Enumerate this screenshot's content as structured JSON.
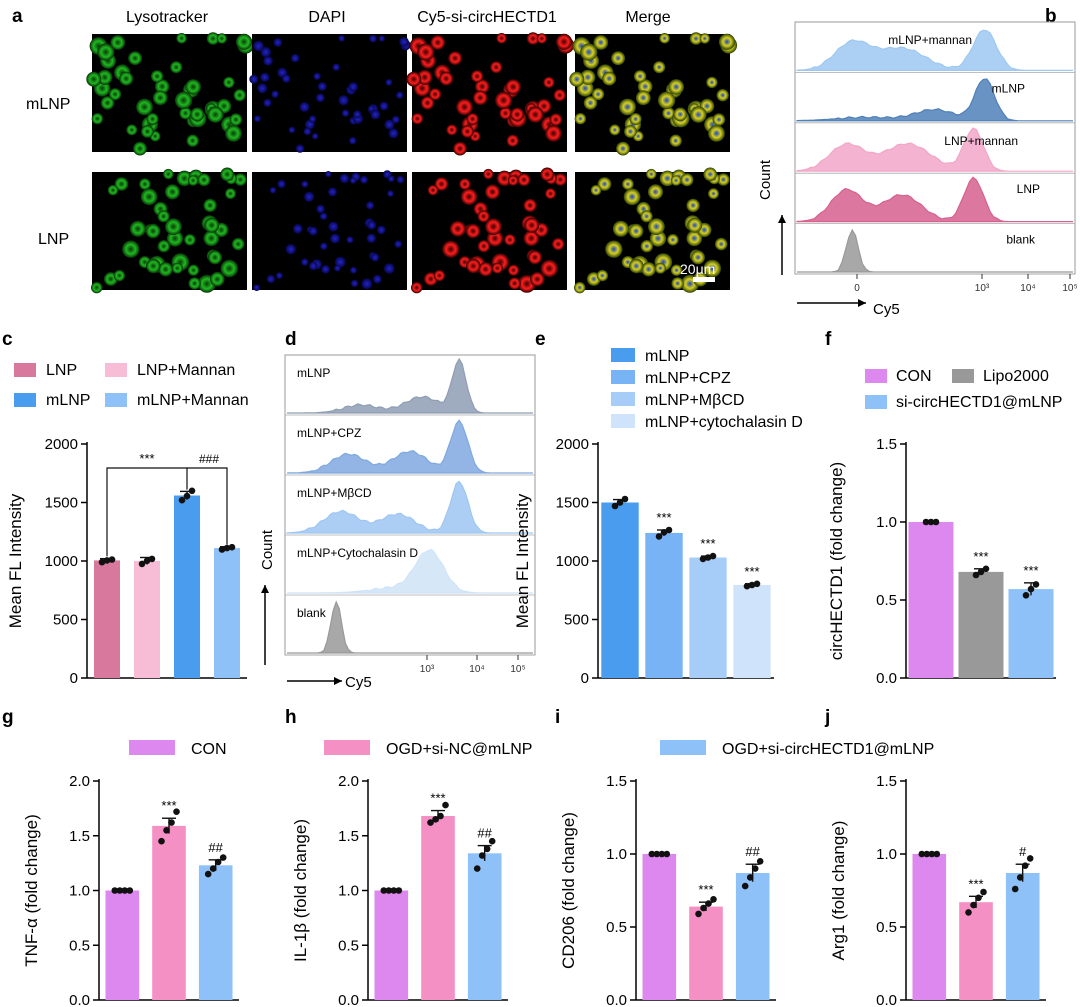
{
  "panel_labels": [
    "a",
    "b",
    "c",
    "d",
    "e",
    "f",
    "g",
    "h",
    "i",
    "j"
  ],
  "microscopy": {
    "col_labels": [
      "Lysotracker",
      "DAPI",
      "Cy5-si-circHECTD1",
      "Merge"
    ],
    "row_labels": [
      "mLNP",
      "LNP"
    ],
    "scale_bar": "20μm"
  },
  "colors": {
    "LNP": "#d8789c",
    "LNP_Mannan": "#f7bcd6",
    "mLNP": "#4a9cef",
    "mLNP_Mannan": "#8ec1f7",
    "e1": "#4a9cef",
    "e2": "#78b4f5",
    "e3": "#a6cdf8",
    "e4": "#cfe3fa",
    "CON": "#dd88ee",
    "Lipo2000": "#999999",
    "si": "#8ec1f7",
    "OGD_NC": "#f590c4"
  },
  "chart_data": [
    {
      "panel": "b",
      "type": "histogram",
      "xlabel": "Cy5",
      "ylabel": "Count",
      "x_tick_labels": [
        "0",
        "10³",
        "10⁴",
        "10⁵"
      ],
      "series": [
        {
          "name": "mLNP+mannan",
          "color": "#9ec8f2"
        },
        {
          "name": "mLNP",
          "color": "#4f80b8"
        },
        {
          "name": "LNP+mannan",
          "color": "#f2a6c8"
        },
        {
          "name": "LNP",
          "color": "#d6608e"
        },
        {
          "name": "blank",
          "color": "#999999"
        }
      ]
    },
    {
      "panel": "c",
      "type": "bar",
      "ylabel": "Mean FL Intensity",
      "ylim": [
        0,
        2000
      ],
      "y_ticks": [
        "0",
        "500",
        "1000",
        "1500",
        "2000"
      ],
      "legend": [
        "LNP",
        "LNP+Mannan",
        "mLNP",
        "mLNP+Mannan"
      ],
      "categories": [
        "LNP",
        "LNP+Mannan",
        "mLNP",
        "mLNP+Mannan"
      ],
      "values": [
        1005,
        1000,
        1560,
        1110
      ],
      "errors": [
        15,
        30,
        35,
        12
      ],
      "points": [
        [
          990,
          1005,
          1012
        ],
        [
          975,
          1002,
          1018
        ],
        [
          1520,
          1555,
          1600
        ],
        [
          1098,
          1110,
          1118
        ]
      ],
      "annotations": [
        "***",
        "###"
      ]
    },
    {
      "panel": "d",
      "type": "histogram",
      "xlabel": "Cy5",
      "ylabel": "Count",
      "x_tick_labels": [
        "10³",
        "10⁴",
        "10⁵"
      ],
      "series": [
        {
          "name": "mLNP",
          "color": "#8e9db4"
        },
        {
          "name": "mLNP+CPZ",
          "color": "#7fa8e0"
        },
        {
          "name": "mLNP+MβCD",
          "color": "#9ec6f2"
        },
        {
          "name": "mLNP+Cytochalasin D",
          "color": "#cfe3f7"
        },
        {
          "name": "blank",
          "color": "#999999"
        }
      ]
    },
    {
      "panel": "e",
      "type": "bar",
      "ylabel": "Mean FL Intensity",
      "ylim": [
        0,
        2000
      ],
      "y_ticks": [
        "0",
        "500",
        "1000",
        "1500",
        "2000"
      ],
      "legend": [
        "mLNP",
        "mLNP+CPZ",
        "mLNP+MβCD",
        "mLNP+cytochalasin D"
      ],
      "categories": [
        "mLNP",
        "mLNP+CPZ",
        "mLNP+MβCD",
        "mLNP+cytochalasin D"
      ],
      "values": [
        1500,
        1240,
        1030,
        795
      ],
      "errors": [
        25,
        25,
        12,
        10
      ],
      "points": [
        [
          1470,
          1500,
          1530
        ],
        [
          1210,
          1245,
          1265
        ],
        [
          1018,
          1030,
          1042
        ],
        [
          785,
          795,
          805
        ]
      ],
      "annotations": [
        "",
        "***",
        "***",
        "***"
      ]
    },
    {
      "panel": "f",
      "type": "bar",
      "ylabel": "circHECTD1 (fold change)",
      "ylim": [
        0,
        1.5
      ],
      "y_ticks": [
        "0.0",
        "0.5",
        "1.0",
        "1.5"
      ],
      "legend": [
        "CON",
        "Lipo2000",
        "si-circHECTD1@mLNP"
      ],
      "categories": [
        "CON",
        "Lipo2000",
        "si-circHECTD1@mLNP"
      ],
      "values": [
        1.0,
        0.68,
        0.57
      ],
      "errors": [
        0,
        0.02,
        0.04
      ],
      "points": [
        [
          1.0,
          1.0,
          1.0
        ],
        [
          0.66,
          0.68,
          0.7
        ],
        [
          0.53,
          0.57,
          0.6
        ]
      ],
      "annotations": [
        "",
        "***",
        "***"
      ]
    },
    {
      "panel": "g",
      "type": "bar",
      "ylabel": "TNF-α (fold change)",
      "ylim": [
        0,
        2.0
      ],
      "y_ticks": [
        "0.0",
        "0.5",
        "1.0",
        "1.5",
        "2.0"
      ],
      "categories": [
        "CON",
        "OGD+si-NC@mLNP",
        "OGD+si-circHECTD1@mLNP"
      ],
      "values": [
        1.0,
        1.59,
        1.23
      ],
      "errors": [
        0,
        0.07,
        0.05
      ],
      "points": [
        [
          1.0,
          1.0,
          1.0,
          1.0
        ],
        [
          1.45,
          1.55,
          1.62,
          1.72
        ],
        [
          1.15,
          1.2,
          1.26,
          1.3
        ]
      ],
      "annotations": [
        "",
        "***",
        "##"
      ]
    },
    {
      "panel": "h",
      "type": "bar",
      "ylabel": "IL-1β (fold change)",
      "ylim": [
        0,
        2.0
      ],
      "y_ticks": [
        "0.0",
        "0.5",
        "1.0",
        "1.5",
        "2.0"
      ],
      "categories": [
        "CON",
        "OGD+si-NC@mLNP",
        "OGD+si-circHECTD1@mLNP"
      ],
      "values": [
        1.0,
        1.68,
        1.34
      ],
      "errors": [
        0,
        0.05,
        0.07
      ],
      "points": [
        [
          1.0,
          1.0,
          1.0,
          1.0
        ],
        [
          1.62,
          1.65,
          1.68,
          1.78
        ],
        [
          1.2,
          1.32,
          1.38,
          1.45
        ]
      ],
      "annotations": [
        "",
        "***",
        "##"
      ]
    },
    {
      "panel": "i",
      "type": "bar",
      "ylabel": "CD206 (fold change)",
      "ylim": [
        0,
        1.5
      ],
      "y_ticks": [
        "0.0",
        "0.5",
        "1.0",
        "1.5"
      ],
      "categories": [
        "CON",
        "OGD+si-NC@mLNP",
        "OGD+si-circHECTD1@mLNP"
      ],
      "values": [
        1.0,
        0.64,
        0.87
      ],
      "errors": [
        0,
        0.03,
        0.06
      ],
      "points": [
        [
          1.0,
          1.0,
          1.0,
          1.0
        ],
        [
          0.59,
          0.63,
          0.66,
          0.69
        ],
        [
          0.78,
          0.84,
          0.9,
          0.95
        ]
      ],
      "annotations": [
        "",
        "***",
        "##"
      ]
    },
    {
      "panel": "j",
      "type": "bar",
      "ylabel": "Arg1 (fold change)",
      "ylim": [
        0,
        1.5
      ],
      "y_ticks": [
        "0.0",
        "0.5",
        "1.0",
        "1.5"
      ],
      "categories": [
        "CON",
        "OGD+si-NC@mLNP",
        "OGD+si-circHECTD1@mLNP"
      ],
      "values": [
        1.0,
        0.67,
        0.87
      ],
      "errors": [
        0,
        0.04,
        0.06
      ],
      "points": [
        [
          1.0,
          1.0,
          1.0,
          1.0
        ],
        [
          0.6,
          0.65,
          0.7,
          0.74
        ],
        [
          0.76,
          0.84,
          0.92,
          0.97
        ]
      ],
      "annotations": [
        "",
        "***",
        "#"
      ]
    }
  ],
  "legend_ghij": [
    "CON",
    "OGD+si-NC@mLNP",
    "OGD+si-circHECTD1@mLNP"
  ]
}
